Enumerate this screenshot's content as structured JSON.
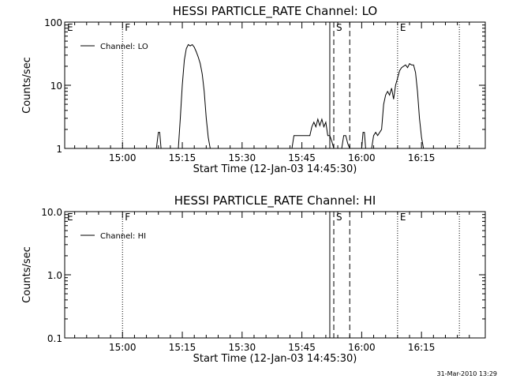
{
  "footer": {
    "date": "31-Mar-2010 13:29"
  },
  "chart_data": [
    {
      "type": "line",
      "title": "HESSI PARTICLE_RATE Channel: LO",
      "xlabel": "Start Time (12-Jan-03 14:45:30)",
      "ylabel": "Counts/sec",
      "yscale": "log",
      "xlim": [
        "14:45:30",
        "16:31:00"
      ],
      "ylim": [
        1,
        100
      ],
      "xticks": [
        "15:00",
        "15:15",
        "15:30",
        "15:45",
        "16:00",
        "16:15"
      ],
      "yticks": [
        {
          "value": 1,
          "label": "1"
        },
        {
          "value": 10,
          "label": "10"
        },
        {
          "value": 100,
          "label": "100"
        }
      ],
      "legend": {
        "label": "Channel: LO",
        "position": "top-left"
      },
      "markers": [
        {
          "time": "14:45:30",
          "style": "dotted",
          "label": "E"
        },
        {
          "time": "15:00:00",
          "style": "dotted",
          "label": "F"
        },
        {
          "time": "15:52:00",
          "style": "solid",
          "label": ""
        },
        {
          "time": "15:53:00",
          "style": "dashed",
          "label": "S"
        },
        {
          "time": "15:57:00",
          "style": "dashed",
          "label": ""
        },
        {
          "time": "16:09:00",
          "style": "dotted",
          "label": "E"
        },
        {
          "time": "16:24:30",
          "style": "dotted",
          "label": ""
        }
      ],
      "series": [
        {
          "name": "Channel: LO",
          "x": [
            "15:08:30",
            "15:09:00",
            "15:09:20",
            "15:09:40",
            "15:10:00",
            "15:14:00",
            "15:14:30",
            "15:15:00",
            "15:15:30",
            "15:16:00",
            "15:16:30",
            "15:17:00",
            "15:17:30",
            "15:18:00",
            "15:18:30",
            "15:19:00",
            "15:19:30",
            "15:20:00",
            "15:20:30",
            "15:21:00",
            "15:21:30",
            "15:22:00",
            "15:42:30",
            "15:43:00",
            "15:47:00",
            "15:47:30",
            "15:48:00",
            "15:48:30",
            "15:49:00",
            "15:49:30",
            "15:50:00",
            "15:50:30",
            "15:51:00",
            "15:51:30",
            "15:52:00",
            "15:52:30",
            "15:53:00",
            "15:53:30",
            "15:54:00",
            "15:55:00",
            "15:55:30",
            "15:56:00",
            "15:56:30",
            "15:57:00",
            "15:57:30",
            "16:00:00",
            "16:00:20",
            "16:00:40",
            "16:01:00",
            "16:02:30",
            "16:03:00",
            "16:03:30",
            "16:04:00",
            "16:05:00",
            "16:05:30",
            "16:06:00",
            "16:06:30",
            "16:07:00",
            "16:07:30",
            "16:08:00",
            "16:08:30",
            "16:09:00",
            "16:09:30",
            "16:10:00",
            "16:10:30",
            "16:11:00",
            "16:11:30",
            "16:12:00",
            "16:12:30",
            "16:13:00",
            "16:13:30",
            "16:14:00",
            "16:14:30",
            "16:15:00",
            "16:15:30",
            "16:16:00"
          ],
          "y": [
            1,
            1.8,
            1.8,
            1,
            0.9,
            1,
            3,
            10,
            25,
            38,
            44,
            42,
            44,
            40,
            34,
            28,
            22,
            15,
            8,
            3,
            1.5,
            1,
            1,
            1.6,
            1.6,
            2.2,
            2.6,
            2.2,
            2.9,
            2.3,
            2.9,
            2.2,
            2.6,
            1.6,
            1.6,
            1.3,
            1,
            1,
            1,
            1,
            1.6,
            1.6,
            1.2,
            1,
            0.9,
            1,
            1.8,
            1.8,
            1,
            1,
            1.6,
            1.8,
            1.6,
            2,
            5,
            7,
            8,
            7,
            9,
            6,
            10,
            13,
            17,
            19,
            20,
            21,
            19,
            22,
            21,
            21,
            16,
            8,
            3,
            1.5,
            1,
            0.9
          ]
        }
      ]
    },
    {
      "type": "line",
      "title": "HESSI PARTICLE_RATE Channel: HI",
      "xlabel": "Start Time (12-Jan-03 14:45:30)",
      "ylabel": "Counts/sec",
      "yscale": "log",
      "xlim": [
        "14:45:30",
        "16:31:00"
      ],
      "ylim": [
        0.1,
        10
      ],
      "xticks": [
        "15:00",
        "15:15",
        "15:30",
        "15:45",
        "16:00",
        "16:15"
      ],
      "yticks": [
        {
          "value": 0.1,
          "label": "0.1"
        },
        {
          "value": 1,
          "label": "1.0"
        },
        {
          "value": 10,
          "label": "10.0"
        }
      ],
      "legend": {
        "label": "Channel: HI",
        "position": "top-left"
      },
      "markers": [
        {
          "time": "14:45:30",
          "style": "dotted",
          "label": "E"
        },
        {
          "time": "15:00:00",
          "style": "dotted",
          "label": "F"
        },
        {
          "time": "15:52:00",
          "style": "solid",
          "label": ""
        },
        {
          "time": "15:53:00",
          "style": "dashed",
          "label": "S"
        },
        {
          "time": "15:57:00",
          "style": "dashed",
          "label": ""
        },
        {
          "time": "16:09:00",
          "style": "dotted",
          "label": "E"
        },
        {
          "time": "16:24:30",
          "style": "dotted",
          "label": ""
        }
      ],
      "series": [
        {
          "name": "Channel: HI",
          "x": [],
          "y": []
        }
      ]
    }
  ]
}
